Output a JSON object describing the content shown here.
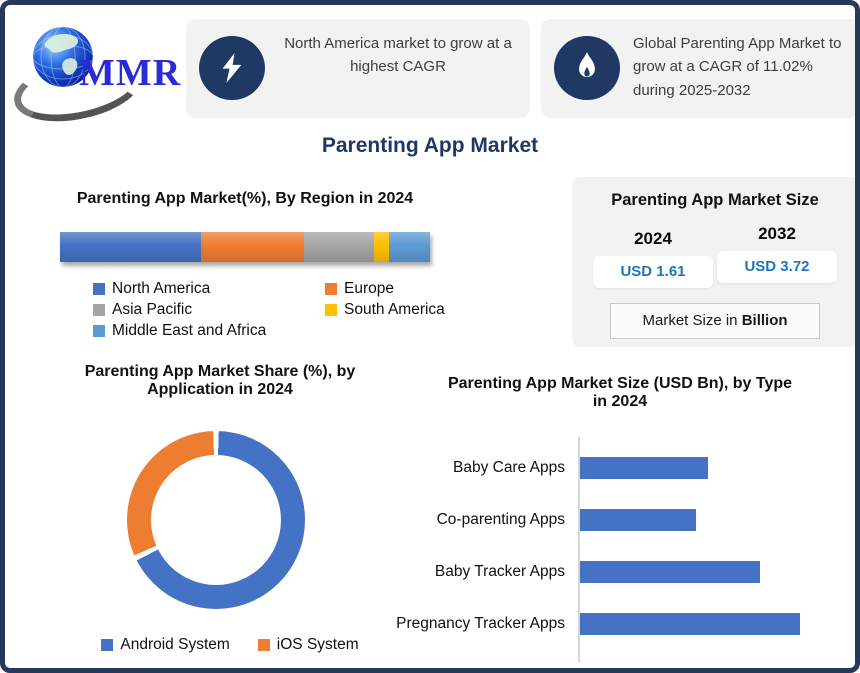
{
  "page": {
    "title": "Parenting App Market"
  },
  "logo": {
    "brand": "MMR"
  },
  "callouts": [
    {
      "icon": "lightning-bolt-icon",
      "text": "North America market to grow at a highest CAGR"
    },
    {
      "icon": "flame-icon",
      "text": "Global Parenting App Market to grow at a CAGR of 11.02% during 2025-2032"
    }
  ],
  "market_size_panel": {
    "title": "Parenting App Market Size",
    "columns": [
      {
        "year": "2024",
        "value": "USD 1.61"
      },
      {
        "year": "2032",
        "value": "USD 3.72"
      }
    ],
    "note_prefix": "Market Size in ",
    "note_bold": "Billion"
  },
  "chart_data": [
    {
      "type": "bar",
      "variant": "stacked-horizontal-100pct",
      "title": "Parenting App Market(%), By Region in 2024",
      "categories": [
        "North America",
        "Europe",
        "Asia Pacific",
        "South America",
        "Middle East and Africa"
      ],
      "values": [
        38,
        28,
        19,
        4,
        11
      ],
      "colors": [
        "#4472C4",
        "#ED7D31",
        "#A5A5A5",
        "#FFC000",
        "#5B9BD5"
      ],
      "unit": "%",
      "legend_position": "bottom"
    },
    {
      "type": "pie",
      "variant": "donut",
      "title": "Parenting App Market Share (%), by\nApplication in 2024",
      "categories": [
        "Android System",
        "iOS System"
      ],
      "values": [
        68,
        32
      ],
      "colors": [
        "#4472C4",
        "#ED7D31"
      ],
      "unit": "%",
      "legend_position": "bottom"
    },
    {
      "type": "bar",
      "variant": "horizontal",
      "title": "Parenting App Market Size (USD Bn), by Type\nin 2024",
      "categories": [
        "Baby Care Apps",
        "Co-parenting Apps",
        "Baby Tracker Apps",
        "Pregnancy Tracker Apps"
      ],
      "values": [
        0.32,
        0.29,
        0.45,
        0.55
      ],
      "color": "#4472C4",
      "xlim": [
        0,
        0.6
      ],
      "unit": "USD Bn",
      "grid": false,
      "legend_position": "none"
    }
  ]
}
